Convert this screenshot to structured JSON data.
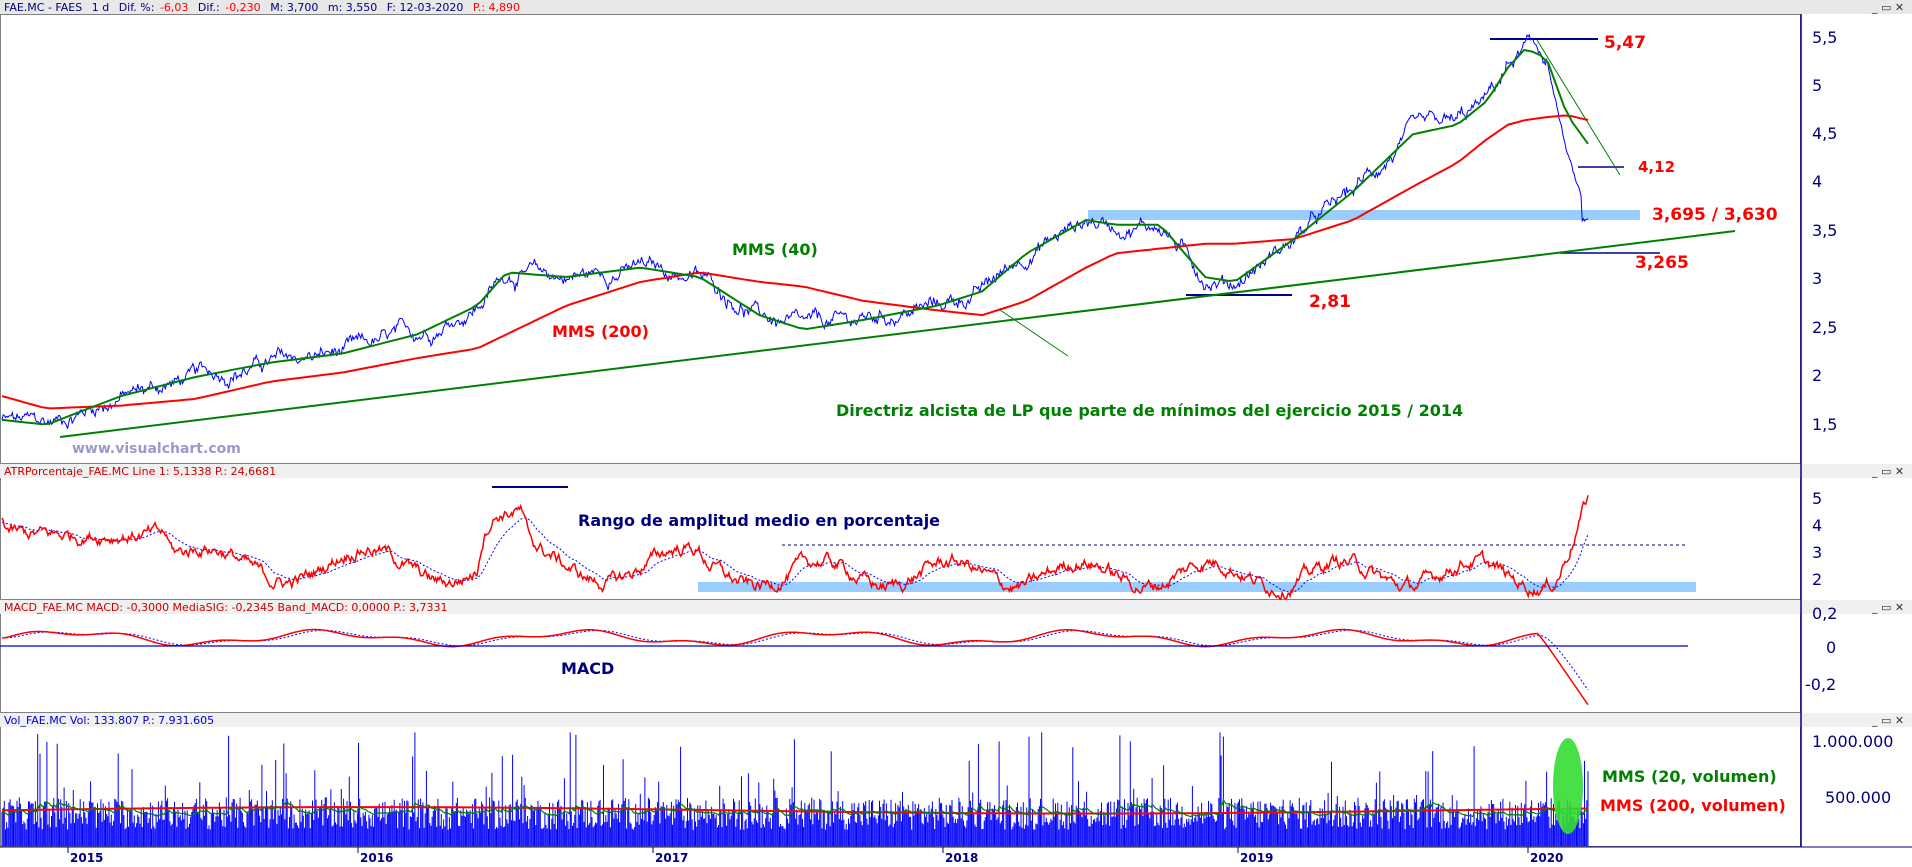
{
  "panels": {
    "price": {
      "header": {
        "symbol": "FAE.MC - FAES",
        "period": "1 d",
        "dif_pct_label": "Dif. %:",
        "dif_pct": "-6,03",
        "dif_label": "Dif.:",
        "dif": "-0,230",
        "max": "M: 3,700",
        "min": "m: 3,550",
        "date": "F: 12-03-2020",
        "p": "P.: 4,890"
      },
      "yticks": [
        "5,5",
        "5",
        "4,5",
        "4",
        "3,5",
        "3",
        "2,5",
        "2",
        "1,5"
      ],
      "watermark": "www.visualchart.com",
      "annotations": {
        "sma40": "MMS (40)",
        "sma200": "MMS (200)",
        "high": "5,47",
        "level412": "4,12",
        "resistance": "3,695 / 3,630",
        "support": "3,265",
        "low": "2,81",
        "trendline": "Directriz alcista de LP que parte de mínimos del ejercicio 2015 / 2014"
      }
    },
    "atr": {
      "header": "ATRPorcentaje_FAE.MC  Line 1: 5,1338  P.: 24,6681",
      "yticks": [
        "5",
        "4",
        "3",
        "2"
      ],
      "annotation": "Rango de amplitud medio en porcentaje"
    },
    "macd": {
      "header": "MACD_FAE.MC  MACD: -0,3000  MediaSIG: -0,2345  Band_MACD: 0,0000  P.: 3,7331",
      "yticks": [
        "-0,2",
        "0",
        "0,2"
      ],
      "annotation": "MACD"
    },
    "volume": {
      "header": "Vol_FAE.MC  Vol: 133.807  P.: 7.931.605",
      "yticks": [
        "1.000.000",
        "500.000"
      ],
      "annotations": {
        "sma20": "MMS (20, volumen)",
        "sma200": "MMS (200, volumen)"
      }
    }
  },
  "xaxis": {
    "years": [
      "2015",
      "2016",
      "2017",
      "2018",
      "2019",
      "2020"
    ]
  },
  "colors": {
    "price": "#0000ff",
    "sma40": "#008000",
    "sma200": "#ff0000",
    "axis": "#00007f",
    "zone": "#99ccff",
    "highlight": "#33dd33"
  },
  "chart_data": [
    {
      "type": "line",
      "panel": "price",
      "x": [
        2014.85,
        2015.0,
        2015.25,
        2015.5,
        2015.75,
        2016.0,
        2016.25,
        2016.45,
        2016.55,
        2016.75,
        2017.0,
        2017.2,
        2017.4,
        2017.55,
        2017.75,
        2018.0,
        2018.15,
        2018.3,
        2018.5,
        2018.6,
        2018.75,
        2018.9,
        2019.0,
        2019.2,
        2019.4,
        2019.6,
        2019.75,
        2019.85,
        2019.92,
        2019.98,
        2020.05,
        2020.12,
        2020.19
      ],
      "series": [
        {
          "name": "MMS (40)",
          "values": [
            1.5,
            1.45,
            1.75,
            1.95,
            2.1,
            2.2,
            2.4,
            2.7,
            3.05,
            3.0,
            3.1,
            3.0,
            2.6,
            2.45,
            2.55,
            2.7,
            2.85,
            3.25,
            3.6,
            3.55,
            3.55,
            3.0,
            2.95,
            3.4,
            3.9,
            4.5,
            4.6,
            4.85,
            5.2,
            5.4,
            5.3,
            4.7,
            4.4
          ]
        },
        {
          "name": "MMS (200)",
          "values": [
            1.75,
            1.62,
            1.65,
            1.72,
            1.9,
            2.0,
            2.15,
            2.25,
            2.4,
            2.7,
            2.95,
            3.05,
            2.95,
            2.9,
            2.75,
            2.65,
            2.6,
            2.75,
            3.1,
            3.25,
            3.3,
            3.35,
            3.35,
            3.4,
            3.6,
            3.95,
            4.2,
            4.45,
            4.6,
            4.65,
            4.68,
            4.7,
            4.65
          ]
        }
      ],
      "ylim": [
        1.1,
        5.7
      ],
      "levels": [
        5.47,
        4.12,
        3.695,
        3.63,
        3.265,
        2.81
      ]
    },
    {
      "type": "line",
      "panel": "atr",
      "ylim": [
        1.5,
        5.5
      ],
      "levels": [
        3.2,
        1.7
      ]
    },
    {
      "type": "line",
      "panel": "macd",
      "ylim": [
        -0.3,
        0.1
      ],
      "levels": [
        0
      ]
    },
    {
      "type": "bar",
      "panel": "volume",
      "ylim": [
        0,
        1100000
      ]
    }
  ]
}
